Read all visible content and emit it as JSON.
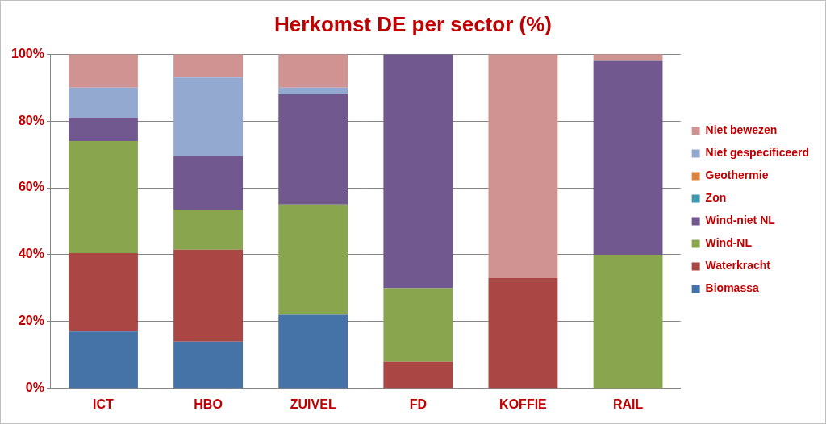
{
  "chart_data": {
    "type": "bar",
    "title": "Herkomst DE per sector (%)",
    "categories": [
      "ICT",
      "HBO",
      "ZUIVEL",
      "FD",
      "KOFFIE",
      "RAIL"
    ],
    "series": [
      {
        "name": "Biomassa",
        "color": "#4572a7",
        "values": [
          17,
          14,
          22,
          0,
          0,
          0
        ]
      },
      {
        "name": "Waterkracht",
        "color": "#aa4643",
        "values": [
          23.5,
          27.5,
          0,
          8,
          33,
          0
        ]
      },
      {
        "name": "Wind-NL",
        "color": "#89a54e",
        "values": [
          33.5,
          12,
          33,
          22,
          0,
          40
        ]
      },
      {
        "name": "Wind-niet NL",
        "color": "#71588f",
        "values": [
          7,
          16,
          33,
          70,
          0,
          58
        ]
      },
      {
        "name": "Zon",
        "color": "#4198af",
        "values": [
          0,
          0,
          0,
          0,
          0,
          0
        ]
      },
      {
        "name": "Geothermie",
        "color": "#db843d",
        "values": [
          0,
          0,
          0,
          0,
          0,
          0
        ]
      },
      {
        "name": "Niet gespecificeerd",
        "color": "#93a9cf",
        "values": [
          9,
          23.5,
          2,
          0,
          0,
          0
        ]
      },
      {
        "name": "Niet bewezen",
        "color": "#d19392",
        "values": [
          10,
          7,
          10,
          0,
          67,
          2
        ]
      }
    ],
    "ylim": [
      0,
      100
    ],
    "yticks": [
      {
        "value": 0,
        "label": "0%"
      },
      {
        "value": 20,
        "label": "20%"
      },
      {
        "value": 40,
        "label": "40%"
      },
      {
        "value": 60,
        "label": "60%"
      },
      {
        "value": 80,
        "label": "80%"
      },
      {
        "value": 100,
        "label": "100%"
      }
    ],
    "stacked": true,
    "grid": true,
    "legend": "right",
    "data_labels": false
  }
}
